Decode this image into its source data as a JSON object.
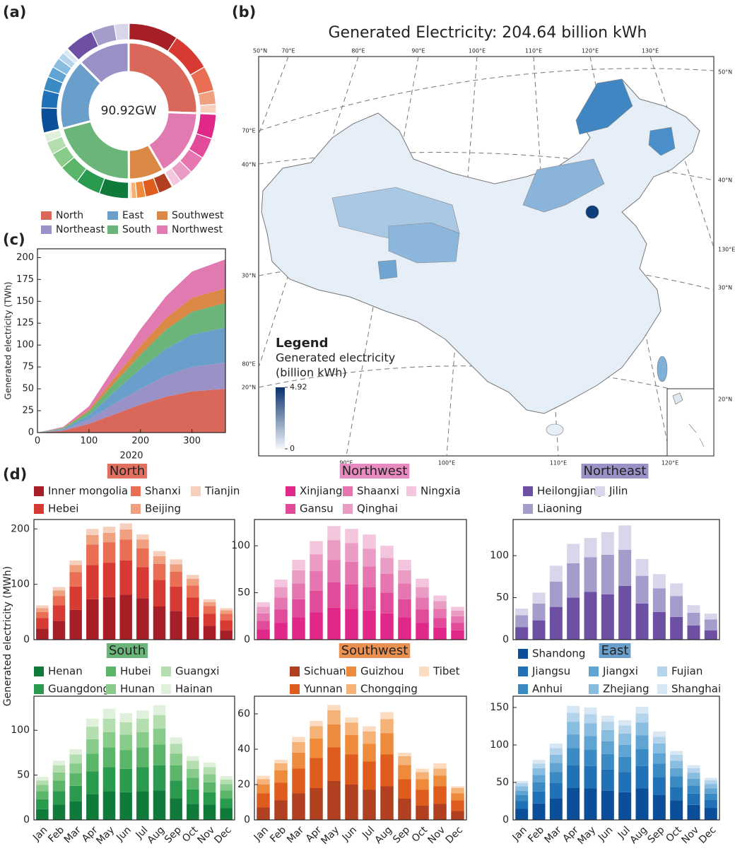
{
  "chart_data": [
    {
      "type": "donut",
      "panel": "(a)",
      "center_label": "90.92GW",
      "categories": [
        "North",
        "Northeast",
        "East",
        "South",
        "Southwest",
        "Northwest"
      ],
      "colors": [
        "#d9685a",
        "#9a92c6",
        "#6a9fcb",
        "#6cb57a",
        "#d98845",
        "#e07ab0"
      ],
      "values": [
        23.2,
        11.3,
        15.2,
        19.0,
        7.6,
        14.6
      ],
      "outer_values": [
        [
          8.4,
          6.7,
          4.2,
          2.3,
          1.6
        ],
        [
          5.0,
          3.9,
          2.4
        ],
        [
          4.3,
          3.0,
          2.3,
          1.8,
          1.7,
          1.2,
          0.9
        ],
        [
          5.0,
          4.2,
          3.4,
          2.7,
          2.2,
          1.5
        ],
        [
          2.5,
          2.3,
          1.5,
          0.9,
          0.4
        ],
        [
          4.2,
          3.5,
          3.0,
          2.3,
          1.6
        ]
      ]
    },
    {
      "type": "map",
      "panel": "(b)",
      "title": "Generated Electricity: 204.64 billion kWh",
      "legend_title": "Legend",
      "colorbar_label": [
        "Generated electricity",
        "(billion kWh)"
      ],
      "clim": [
        0,
        4.92
      ],
      "cticks": [
        0,
        4.92
      ],
      "colors": [
        "#f4f8fc",
        "#08306b"
      ],
      "graticule_labels": {
        "top": [
          "50°N",
          "70°E",
          "80°E",
          "90°E",
          "100°E",
          "110°E",
          "120°E",
          "130°E"
        ],
        "left": [
          "70°E",
          "40°N",
          "30°N",
          "80°E",
          "20°N"
        ],
        "right": [
          "50°N",
          "40°N",
          "130°E",
          "30°N",
          "20°N"
        ],
        "bottom": [
          "90°E",
          "100°E",
          "110°E",
          "120°E"
        ]
      }
    },
    {
      "type": "area",
      "panel": "(c)",
      "xlabel": "2020",
      "ylabel": "Generated electricity (TWh)",
      "x": [
        0,
        50,
        100,
        150,
        200,
        250,
        300,
        365
      ],
      "xlim": [
        0,
        365
      ],
      "xticks": [
        0,
        100,
        200,
        300
      ],
      "ylim": [
        0,
        210
      ],
      "yticks": [
        0,
        25,
        50,
        75,
        100,
        125,
        150,
        175,
        200
      ],
      "series": [
        {
          "color": "#d9685a",
          "values": [
            0,
            2,
            10,
            21,
            32,
            41,
            47,
            50
          ]
        },
        {
          "color": "#9a92c6",
          "values": [
            0,
            1,
            5,
            12,
            18,
            24,
            28,
            30
          ]
        },
        {
          "color": "#6a9fcb",
          "values": [
            0,
            1,
            5,
            14,
            23,
            31,
            37,
            40
          ]
        },
        {
          "color": "#6cb57a",
          "values": [
            0,
            1,
            4,
            10,
            16,
            22,
            26,
            28
          ]
        },
        {
          "color": "#d98845",
          "values": [
            0,
            0.5,
            2,
            6,
            10,
            13,
            16,
            17
          ]
        },
        {
          "color": "#e07ab0",
          "values": [
            0,
            1,
            4,
            12,
            19,
            25,
            30,
            33
          ]
        }
      ]
    },
    {
      "type": "stacked_bar",
      "panel": "(d)",
      "ylabel": "Generated electricity (MWh)",
      "title": "North",
      "title_color": "#e07060",
      "ylim": [
        0,
        217
      ],
      "yticks": [
        0,
        100,
        200
      ],
      "series": [
        {
          "name": "Inner mongolia",
          "color": "#a61f27",
          "values": [
            20,
            34,
            54,
            73,
            77,
            81,
            75,
            60,
            52,
            41,
            25,
            17
          ]
        },
        {
          "name": "Hebei",
          "color": "#d63a32",
          "values": [
            19,
            28,
            42,
            62,
            62,
            62,
            56,
            48,
            44,
            35,
            22,
            18
          ]
        },
        {
          "name": "Shanxi",
          "color": "#ea6e53",
          "values": [
            11,
            17,
            26,
            37,
            37,
            38,
            34,
            29,
            27,
            22,
            14,
            12
          ]
        },
        {
          "name": "Beijing",
          "color": "#f0a07f",
          "values": [
            7,
            10,
            13,
            17,
            17,
            18,
            16,
            14,
            13,
            12,
            7,
            6
          ]
        },
        {
          "name": "Tianjin",
          "color": "#f7d0bd",
          "values": [
            5,
            6,
            8,
            11,
            11,
            11,
            9,
            9,
            9,
            7,
            5,
            4
          ]
        }
      ]
    },
    {
      "type": "stacked_bar",
      "title": "Northwest",
      "title_color": "#e68ac0",
      "ylim": [
        0,
        128
      ],
      "yticks": [
        0,
        50,
        100
      ],
      "series": [
        {
          "name": "Xinjiang",
          "color": "#e0278a",
          "values": [
            11,
            18,
            24,
            29,
            34,
            33,
            31,
            28,
            24,
            18,
            13,
            10
          ]
        },
        {
          "name": "Gansu",
          "color": "#e14b9a",
          "values": [
            9,
            14,
            19,
            23,
            27,
            26,
            25,
            22,
            19,
            14,
            10,
            8
          ]
        },
        {
          "name": "Shaanxi",
          "color": "#e576b0",
          "values": [
            8,
            13,
            17,
            21,
            24,
            24,
            22,
            20,
            17,
            13,
            10,
            7
          ]
        },
        {
          "name": "Qinghai",
          "color": "#eb9cc5",
          "values": [
            7,
            11,
            14,
            18,
            21,
            20,
            19,
            17,
            14,
            11,
            8,
            6
          ]
        },
        {
          "name": "Ningxia",
          "color": "#f3c6de",
          "values": [
            5,
            8,
            11,
            14,
            15,
            15,
            15,
            13,
            11,
            9,
            6,
            4
          ]
        }
      ]
    },
    {
      "type": "stacked_bar",
      "title": "Northeast",
      "title_color": "#9a92c6",
      "ylim": [
        0,
        143
      ],
      "yticks": [
        0,
        50,
        100
      ],
      "series": [
        {
          "name": "Heilongjiang",
          "color": "#6d4fa3",
          "values": [
            15,
            23,
            39,
            50,
            57,
            54,
            64,
            43,
            33,
            27,
            17,
            11
          ]
        },
        {
          "name": "Liaoning",
          "color": "#a49cca",
          "values": [
            14,
            20,
            30,
            41,
            41,
            47,
            43,
            33,
            28,
            25,
            15,
            13
          ]
        },
        {
          "name": "Jilin",
          "color": "#d8d6ea",
          "values": [
            8,
            13,
            19,
            23,
            23,
            27,
            29,
            20,
            17,
            15,
            9,
            7
          ]
        }
      ]
    },
    {
      "type": "stacked_bar",
      "title": "South",
      "title_color": "#6cb57a",
      "categories": [
        "Jan",
        "Feb",
        "Mar",
        "Apr",
        "May",
        "Jun",
        "Jul",
        "Aug",
        "Sep",
        "Oct",
        "Nov",
        "Dec"
      ],
      "ylim": [
        0,
        138
      ],
      "yticks": [
        0,
        50,
        100
      ],
      "series": [
        {
          "name": "Henan",
          "color": "#0f7a3a",
          "values": [
            12,
            17,
            21,
            29,
            32,
            31,
            32,
            33,
            24,
            18,
            17,
            13
          ]
        },
        {
          "name": "Guangdong",
          "color": "#2a9a4e",
          "values": [
            11,
            15,
            17,
            25,
            27,
            26,
            27,
            28,
            20,
            16,
            14,
            11
          ]
        },
        {
          "name": "Hubei",
          "color": "#5bb66a",
          "values": [
            9,
            12,
            14,
            20,
            22,
            21,
            22,
            23,
            17,
            13,
            11,
            9
          ]
        },
        {
          "name": "Hunan",
          "color": "#88cb8a",
          "values": [
            7,
            9,
            11,
            16,
            17,
            17,
            17,
            18,
            13,
            10,
            9,
            7
          ]
        },
        {
          "name": "Guangxi",
          "color": "#b5deb0",
          "values": [
            5,
            8,
            10,
            14,
            15,
            14,
            15,
            15,
            11,
            9,
            8,
            5
          ]
        },
        {
          "name": "Hainan",
          "color": "#dff1da",
          "values": [
            4,
            5,
            6,
            9,
            11,
            10,
            9,
            11,
            7,
            5,
            5,
            4
          ]
        }
      ]
    },
    {
      "type": "stacked_bar",
      "title": "Southwest",
      "title_color": "#ea9050",
      "categories": [
        "Jan",
        "Feb",
        "Mar",
        "Apr",
        "May",
        "Jun",
        "Jul",
        "Aug",
        "Sep",
        "Oct",
        "Nov",
        "Dec"
      ],
      "ylim": [
        0,
        70
      ],
      "yticks": [
        0,
        20,
        40,
        60
      ],
      "series": [
        {
          "name": "Sichuan",
          "color": "#b0401f",
          "values": [
            7,
            11,
            15,
            18,
            22,
            20,
            17,
            19,
            12,
            8,
            9,
            5
          ]
        },
        {
          "name": "Yunnan",
          "color": "#de5d1e",
          "values": [
            8,
            10,
            14,
            17,
            19,
            17,
            16,
            18,
            11,
            9,
            10,
            6
          ]
        },
        {
          "name": "Guizhou",
          "color": "#ee8a3c",
          "values": [
            5,
            7,
            9,
            11,
            13,
            11,
            10,
            12,
            8,
            6,
            6,
            4
          ]
        },
        {
          "name": "Chongqing",
          "color": "#f4b277",
          "values": [
            3,
            4,
            6,
            7,
            8,
            7,
            7,
            8,
            5,
            4,
            4,
            3
          ]
        },
        {
          "name": "Tibet",
          "color": "#fbdcc1",
          "values": [
            2,
            2,
            3,
            3,
            3,
            3,
            3,
            4,
            2,
            2,
            3,
            1
          ]
        }
      ]
    },
    {
      "type": "stacked_bar",
      "title": "East",
      "title_color": "#6a9fcb",
      "categories": [
        "Jan",
        "Feb",
        "Mar",
        "Apr",
        "May",
        "Jun",
        "Jul",
        "Aug",
        "Sep",
        "Oct",
        "Nov",
        "Dec"
      ],
      "ylim": [
        0,
        165
      ],
      "yticks": [
        0,
        50,
        100,
        150
      ],
      "series": [
        {
          "name": "Shandong",
          "color": "#0b4f9a",
          "values": [
            15,
            22,
            29,
            43,
            42,
            39,
            37,
            42,
            33,
            26,
            20,
            16
          ]
        },
        {
          "name": "Jiangsu",
          "color": "#2071b5",
          "values": [
            10,
            16,
            20,
            30,
            30,
            28,
            27,
            30,
            24,
            18,
            15,
            11
          ]
        },
        {
          "name": "Anhui",
          "color": "#3a8ac3",
          "values": [
            8,
            12,
            15,
            23,
            22,
            21,
            20,
            23,
            18,
            14,
            11,
            8
          ]
        },
        {
          "name": "Jiangxi",
          "color": "#5fa4d2",
          "values": [
            6,
            10,
            12,
            18,
            18,
            17,
            16,
            18,
            14,
            11,
            9,
            7
          ]
        },
        {
          "name": "Zhejiang",
          "color": "#89bde0",
          "values": [
            6,
            9,
            11,
            17,
            17,
            15,
            15,
            17,
            13,
            10,
            8,
            6
          ]
        },
        {
          "name": "Fujian",
          "color": "#b4d4ec",
          "values": [
            4,
            6,
            9,
            12,
            12,
            11,
            11,
            12,
            9,
            8,
            6,
            5
          ]
        },
        {
          "name": "Shanghai",
          "color": "#d8e7f4",
          "values": [
            3,
            5,
            6,
            9,
            9,
            8,
            7,
            9,
            7,
            5,
            4,
            3
          ]
        }
      ]
    }
  ]
}
